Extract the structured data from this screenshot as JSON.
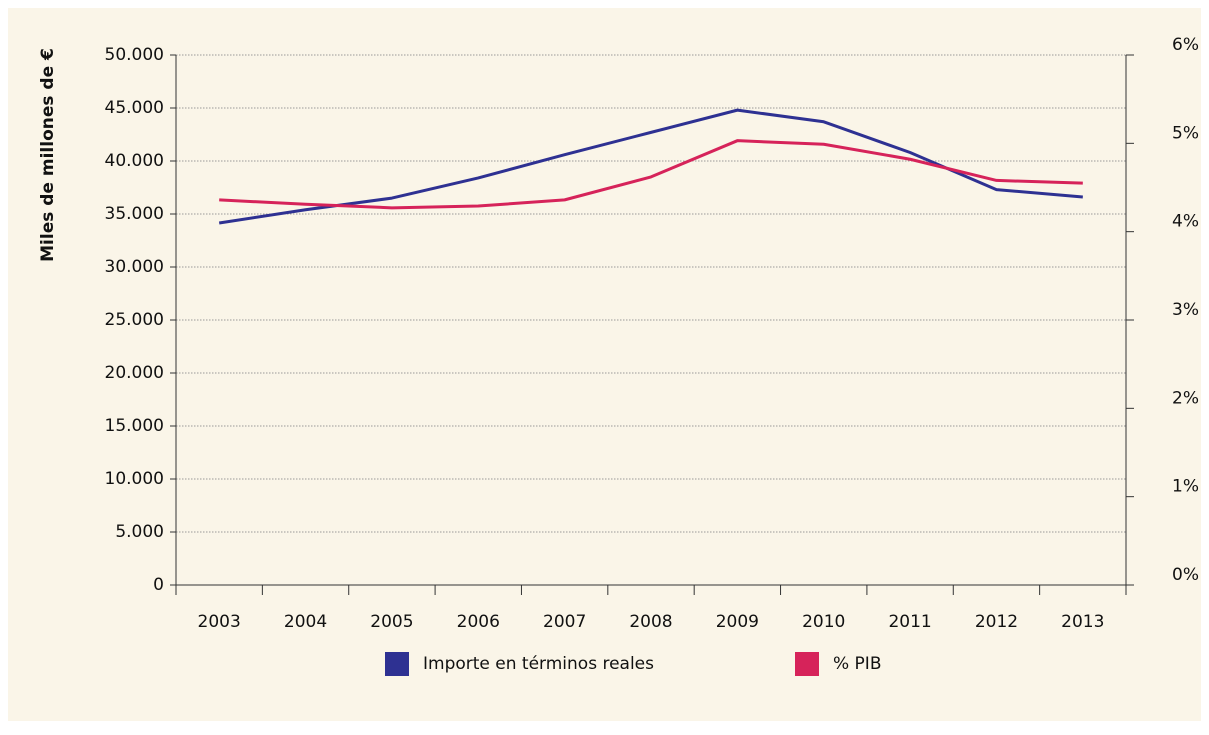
{
  "chart_data": {
    "type": "line",
    "y_label": "Miles de millones de €",
    "categories": [
      "2003",
      "2004",
      "2005",
      "2006",
      "2007",
      "2008",
      "2009",
      "2010",
      "2011",
      "2012",
      "2013"
    ],
    "series": [
      {
        "name": "Importe en términos reales",
        "color": "#2e3192",
        "values": [
          34150,
          35400,
          36500,
          38400,
          40600,
          42700,
          44800,
          43700,
          40800,
          37300,
          36600
        ]
      },
      {
        "name": "% PIB",
        "color": "#d6235a",
        "axis": "y2",
        "values": [
          4.36,
          4.31,
          4.27,
          4.29,
          4.36,
          4.62,
          5.03,
          4.99,
          4.82,
          4.58,
          4.55
        ]
      }
    ],
    "ylim": [
      0,
      50000
    ],
    "yticks": [
      0,
      {
        "value": 5000,
        "label": "5.000"
      },
      {
        "value": 10000,
        "label": "10.000"
      },
      {
        "value": 15000,
        "label": "15.000"
      },
      {
        "value": 20000,
        "label": "20.000"
      },
      {
        "value": 25000,
        "label": "25.000"
      },
      {
        "value": 30000,
        "label": "30.000"
      },
      {
        "value": 35000,
        "label": "35.000"
      },
      {
        "value": 40000,
        "label": "40.000"
      },
      {
        "value": 45000,
        "label": "45.000"
      },
      {
        "value": 50000,
        "label": "50.000"
      }
    ],
    "y2lim": [
      0,
      6
    ],
    "y2ticks": [
      {
        "value": 0,
        "label": "0%"
      },
      {
        "value": 1,
        "label": "1%"
      },
      {
        "value": 2,
        "label": "2%"
      },
      {
        "value": 3,
        "label": "3%"
      },
      {
        "value": 4,
        "label": "4%"
      },
      {
        "value": 5,
        "label": "5%"
      },
      {
        "value": 6,
        "label": "6%"
      }
    ],
    "grid": true,
    "legend": "bottom"
  }
}
